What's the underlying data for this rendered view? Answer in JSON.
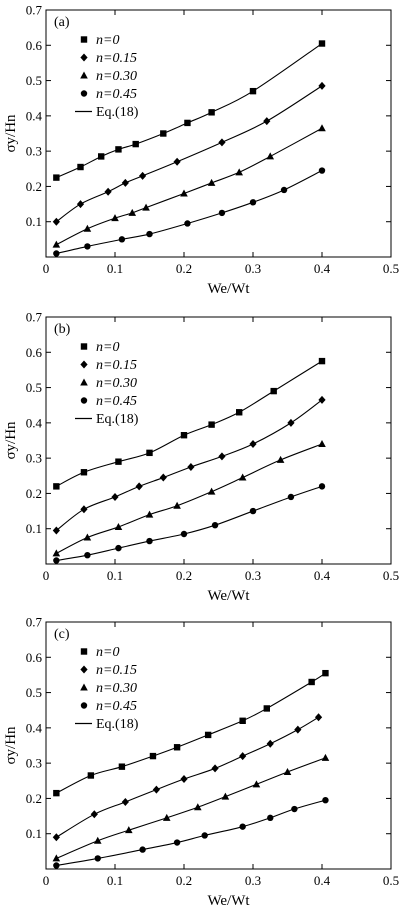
{
  "chart_data": [
    {
      "type": "scatter",
      "panel_label": "(a)",
      "xlabel": "We/Wt",
      "ylabel": "σy/Hn",
      "xlim": [
        0,
        0.5
      ],
      "ylim": [
        0,
        0.7
      ],
      "xticks": [
        "0",
        "0.1",
        "0.2",
        "0.3",
        "0.4",
        "0.5"
      ],
      "yticks": [
        "0.1",
        "0.2",
        "0.3",
        "0.4",
        "0.5",
        "0.6",
        "0.7"
      ],
      "grid": false,
      "legend_position": "top-left",
      "fit_label": "Eq.(18)",
      "series": [
        {
          "name": "n=0",
          "marker": "square",
          "x": [
            0.015,
            0.05,
            0.08,
            0.105,
            0.13,
            0.17,
            0.205,
            0.24,
            0.3,
            0.4
          ],
          "y": [
            0.225,
            0.255,
            0.285,
            0.305,
            0.32,
            0.35,
            0.38,
            0.41,
            0.47,
            0.605
          ]
        },
        {
          "name": "n=0.15",
          "marker": "diamond",
          "x": [
            0.015,
            0.05,
            0.09,
            0.115,
            0.14,
            0.19,
            0.255,
            0.32,
            0.4
          ],
          "y": [
            0.1,
            0.15,
            0.185,
            0.21,
            0.23,
            0.27,
            0.325,
            0.385,
            0.485
          ]
        },
        {
          "name": "n=0.30",
          "marker": "triangle",
          "x": [
            0.015,
            0.06,
            0.1,
            0.125,
            0.145,
            0.2,
            0.24,
            0.28,
            0.325,
            0.4
          ],
          "y": [
            0.035,
            0.08,
            0.11,
            0.125,
            0.14,
            0.18,
            0.21,
            0.24,
            0.285,
            0.365
          ]
        },
        {
          "name": "n=0.45",
          "marker": "circle",
          "x": [
            0.015,
            0.06,
            0.11,
            0.15,
            0.205,
            0.255,
            0.3,
            0.345,
            0.4
          ],
          "y": [
            0.01,
            0.03,
            0.05,
            0.065,
            0.095,
            0.125,
            0.155,
            0.19,
            0.245
          ]
        }
      ]
    },
    {
      "type": "scatter",
      "panel_label": "(b)",
      "xlabel": "We/Wt",
      "ylabel": "σy/Hn",
      "xlim": [
        0,
        0.5
      ],
      "ylim": [
        0,
        0.7
      ],
      "xticks": [
        "0",
        "0.1",
        "0.2",
        "0.3",
        "0.4",
        "0.5"
      ],
      "yticks": [
        "0.1",
        "0.2",
        "0.3",
        "0.4",
        "0.5",
        "0.6",
        "0.7"
      ],
      "grid": false,
      "legend_position": "top-left",
      "fit_label": "Eq.(18)",
      "series": [
        {
          "name": "n=0",
          "marker": "square",
          "x": [
            0.015,
            0.055,
            0.105,
            0.15,
            0.2,
            0.24,
            0.28,
            0.33,
            0.4
          ],
          "y": [
            0.22,
            0.26,
            0.29,
            0.315,
            0.365,
            0.395,
            0.43,
            0.49,
            0.575
          ]
        },
        {
          "name": "n=0.15",
          "marker": "diamond",
          "x": [
            0.015,
            0.055,
            0.1,
            0.135,
            0.17,
            0.21,
            0.255,
            0.3,
            0.355,
            0.4
          ],
          "y": [
            0.095,
            0.155,
            0.19,
            0.22,
            0.245,
            0.275,
            0.305,
            0.34,
            0.4,
            0.465
          ]
        },
        {
          "name": "n=0.30",
          "marker": "triangle",
          "x": [
            0.015,
            0.06,
            0.105,
            0.15,
            0.19,
            0.24,
            0.285,
            0.34,
            0.4
          ],
          "y": [
            0.03,
            0.075,
            0.105,
            0.14,
            0.165,
            0.205,
            0.245,
            0.295,
            0.34
          ]
        },
        {
          "name": "n=0.45",
          "marker": "circle",
          "x": [
            0.015,
            0.06,
            0.105,
            0.15,
            0.2,
            0.245,
            0.3,
            0.355,
            0.4
          ],
          "y": [
            0.01,
            0.025,
            0.045,
            0.065,
            0.085,
            0.11,
            0.15,
            0.19,
            0.22
          ]
        }
      ]
    },
    {
      "type": "scatter",
      "panel_label": "(c)",
      "xlabel": "We/Wt",
      "ylabel": "σy/Hn",
      "xlim": [
        0,
        0.5
      ],
      "ylim": [
        0,
        0.7
      ],
      "xticks": [
        "0",
        "0.1",
        "0.2",
        "0.3",
        "0.4",
        "0.5"
      ],
      "yticks": [
        "0.1",
        "0.2",
        "0.3",
        "0.4",
        "0.5",
        "0.6",
        "0.7"
      ],
      "grid": false,
      "legend_position": "top-left",
      "fit_label": "Eq.(18)",
      "series": [
        {
          "name": "n=0",
          "marker": "square",
          "x": [
            0.015,
            0.065,
            0.11,
            0.155,
            0.19,
            0.235,
            0.285,
            0.32,
            0.385,
            0.405
          ],
          "y": [
            0.215,
            0.265,
            0.29,
            0.32,
            0.345,
            0.38,
            0.42,
            0.455,
            0.53,
            0.555
          ]
        },
        {
          "name": "n=0.15",
          "marker": "diamond",
          "x": [
            0.015,
            0.07,
            0.115,
            0.16,
            0.2,
            0.245,
            0.285,
            0.325,
            0.365,
            0.395
          ],
          "y": [
            0.09,
            0.155,
            0.19,
            0.225,
            0.255,
            0.285,
            0.32,
            0.355,
            0.395,
            0.43
          ]
        },
        {
          "name": "n=0.30",
          "marker": "triangle",
          "x": [
            0.015,
            0.075,
            0.12,
            0.175,
            0.22,
            0.26,
            0.305,
            0.35,
            0.405
          ],
          "y": [
            0.03,
            0.08,
            0.11,
            0.145,
            0.175,
            0.205,
            0.24,
            0.275,
            0.315
          ]
        },
        {
          "name": "n=0.45",
          "marker": "circle",
          "x": [
            0.015,
            0.075,
            0.14,
            0.19,
            0.23,
            0.285,
            0.325,
            0.36,
            0.405
          ],
          "y": [
            0.01,
            0.03,
            0.055,
            0.075,
            0.095,
            0.12,
            0.145,
            0.17,
            0.195
          ]
        }
      ]
    }
  ]
}
